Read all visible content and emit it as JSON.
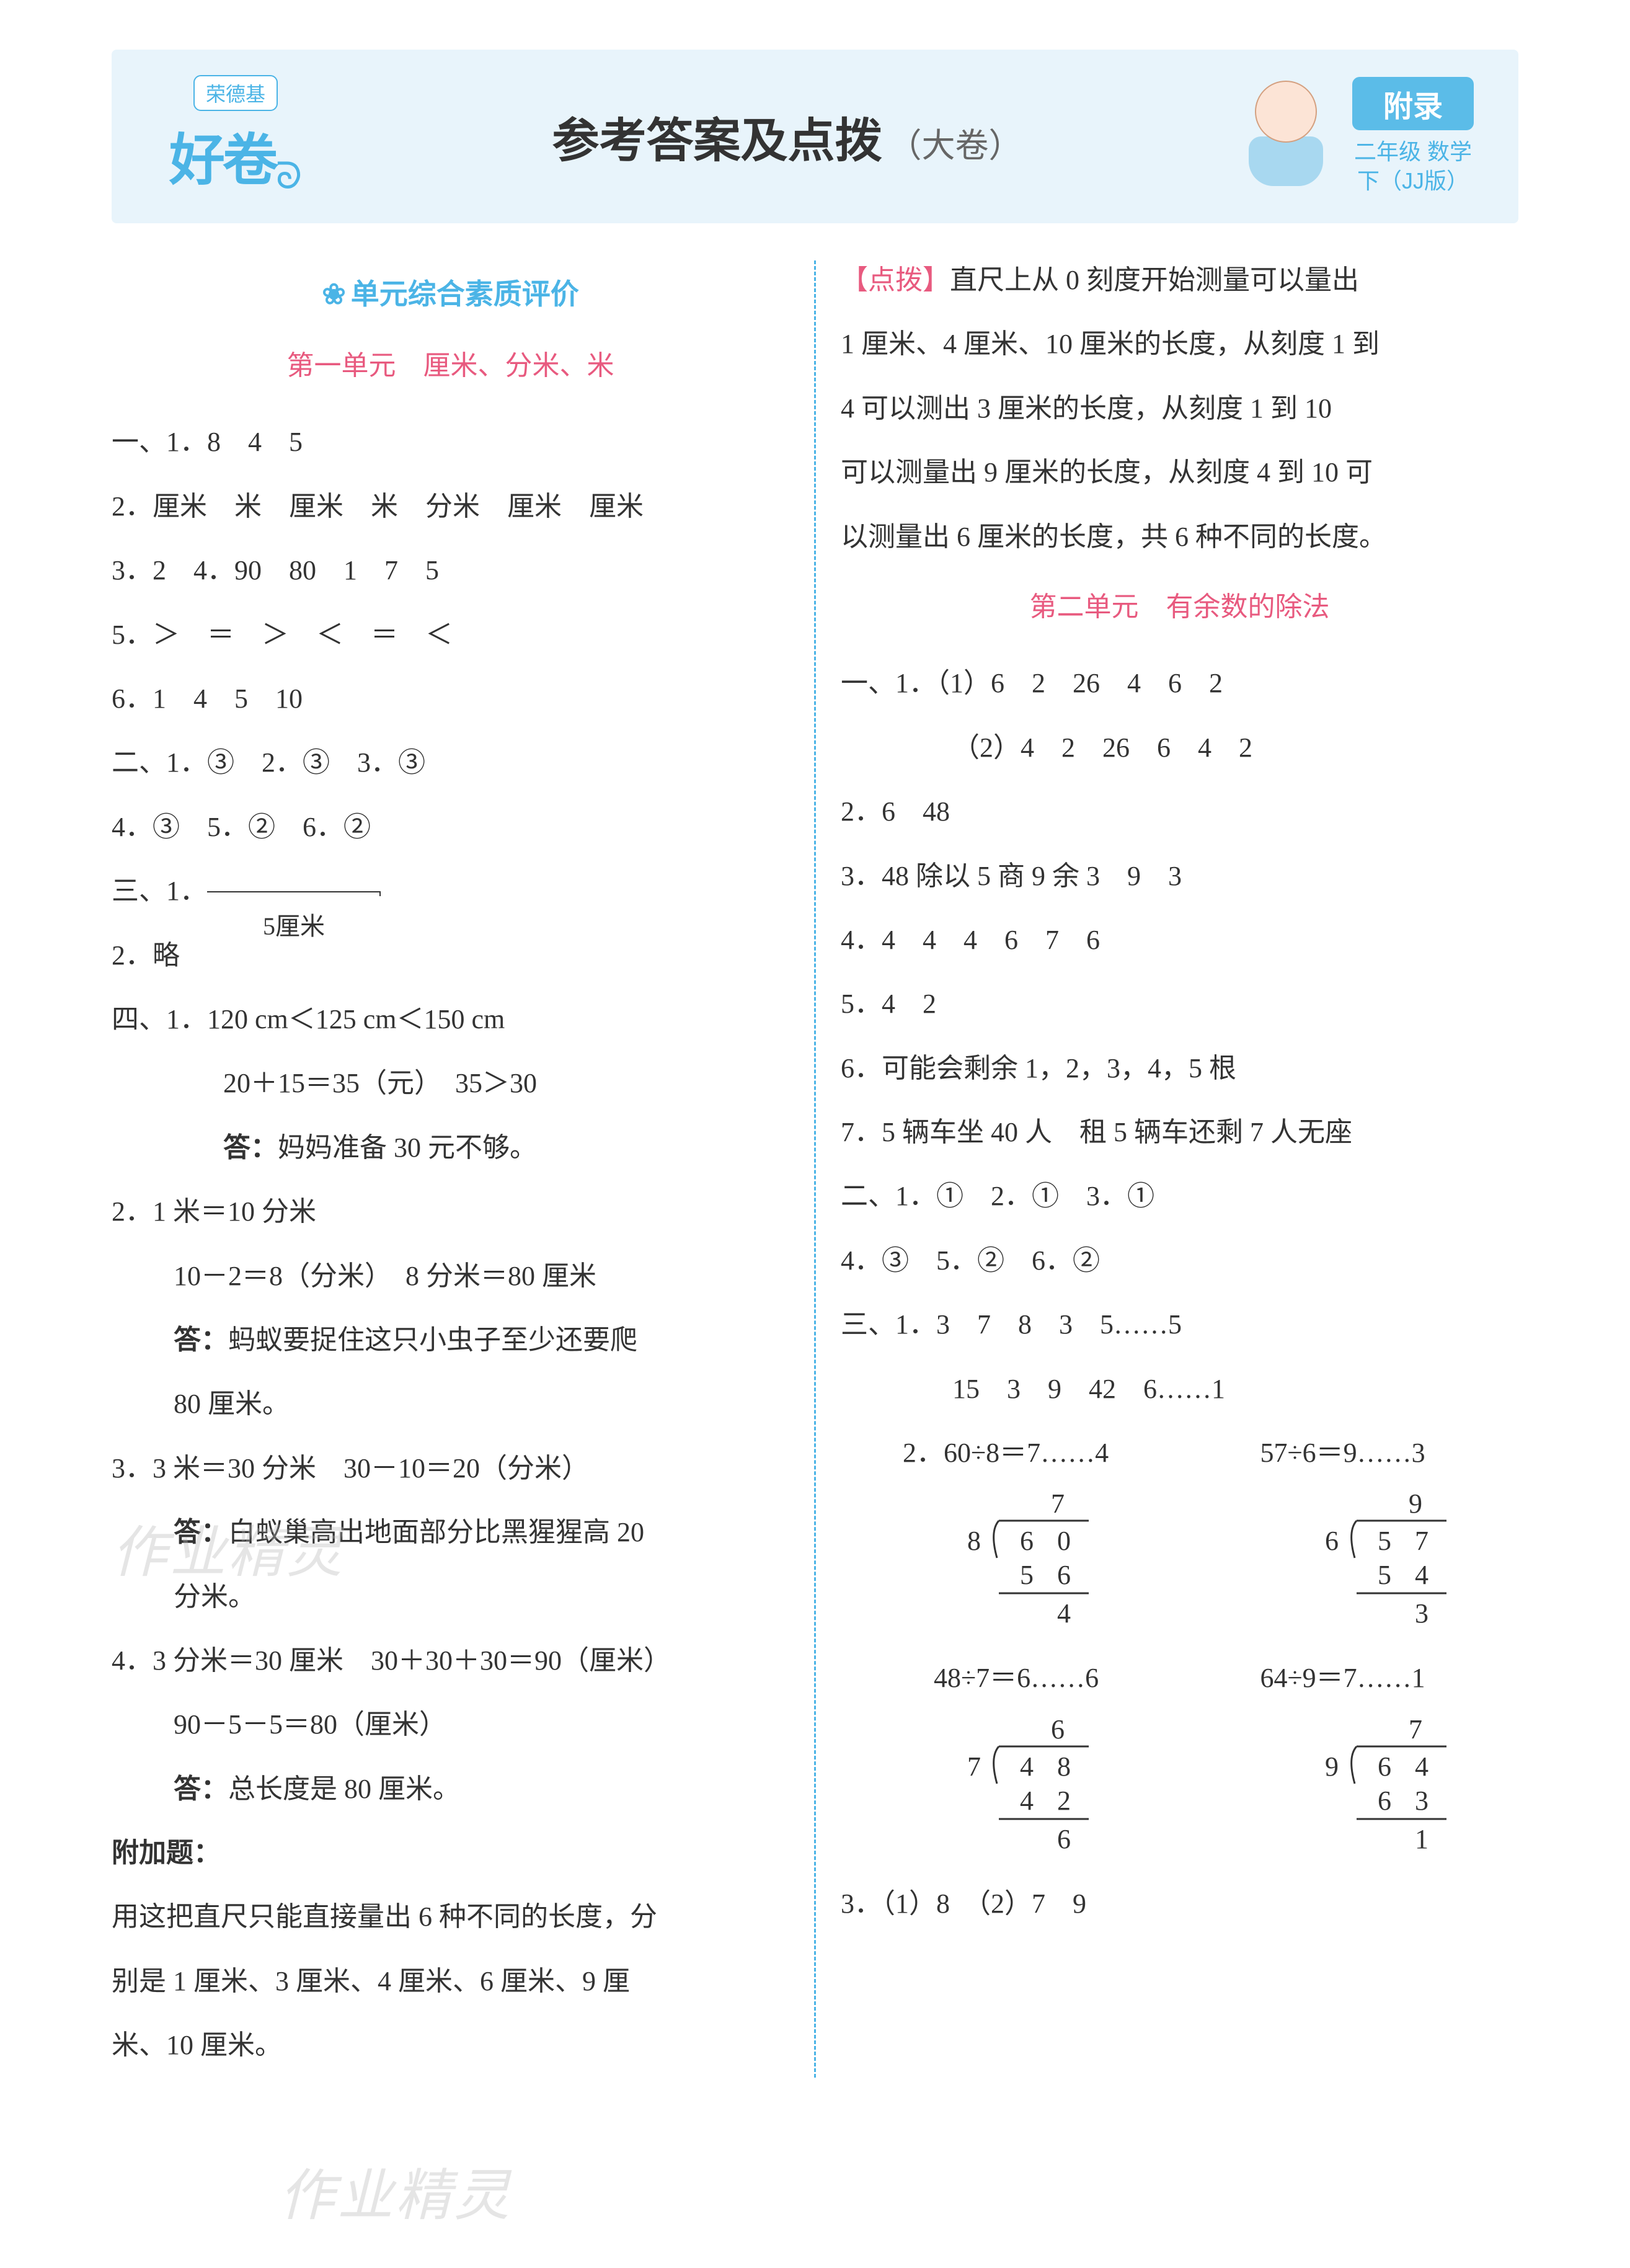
{
  "header": {
    "logo_tag": "荣德基",
    "logo_main": "好卷",
    "title_main": "参考答案及点拨",
    "title_sub": "（大卷）",
    "badge_top": "附录",
    "badge_line1": "二年级 数学",
    "badge_line2": "下（JJ版）"
  },
  "colors": {
    "blue": "#4bb4e6",
    "pink": "#e85a7f",
    "header_bg": "#e8f4fb",
    "text": "#333333"
  },
  "left_column": {
    "section_title": "单元综合素质评价",
    "unit_title": "第一单元　厘米、分米、米",
    "lines": [
      {
        "t": "一、1．8　4　5"
      },
      {
        "t": "2．厘米　米　厘米　米　分米　厘米　厘米"
      },
      {
        "t": "3．2　4．90　80　1　7　5"
      },
      {
        "t": "5．＞　＝　＞　＜　＝　＜"
      },
      {
        "t": "6．1　4　5　10"
      },
      {
        "t": "二、1．③　2．③　3．③"
      },
      {
        "t": "4．③　5．②　6．②"
      },
      {
        "t": "三、1．",
        "underline": "5厘米"
      },
      {
        "t": "2．略"
      },
      {
        "t": "四、1．120 cm＜125 cm＜150 cm"
      },
      {
        "t": "20＋15＝35（元）　35＞30",
        "indent": 2
      },
      {
        "t": "答：妈妈准备 30 元不够。",
        "indent": 2,
        "bold_prefix": "答："
      },
      {
        "t": "2．1 米＝10 分米"
      },
      {
        "t": "10－2＝8（分米）　8 分米＝80 厘米",
        "indent": 1
      },
      {
        "t": "答：蚂蚁要捉住这只小虫子至少还要爬",
        "indent": 1,
        "bold_prefix": "答："
      },
      {
        "t": "80 厘米。",
        "indent": 1
      },
      {
        "t": "3．3 米＝30 分米　30－10＝20（分米）"
      },
      {
        "t": "答：白蚁巢高出地面部分比黑猩猩高 20",
        "indent": 1,
        "bold_prefix": "答："
      },
      {
        "t": "分米。",
        "indent": 1
      },
      {
        "t": "4．3 分米＝30 厘米　30＋30＋30＝90（厘米）"
      },
      {
        "t": "90－5－5＝80（厘米）",
        "indent": 1
      },
      {
        "t": "答：总长度是 80 厘米。",
        "indent": 1,
        "bold_prefix": "答："
      },
      {
        "t": "附加题：",
        "bold": true
      },
      {
        "t": "用这把直尺只能直接量出 6 种不同的长度，分"
      },
      {
        "t": "别是 1 厘米、3 厘米、4 厘米、6 厘米、9 厘"
      },
      {
        "t": "米、10 厘米。"
      }
    ]
  },
  "right_column": {
    "hint_label": "【点拨】",
    "hint_text": "直尺上从 0 刻度开始测量可以量出\n1 厘米、4 厘米、10 厘米的长度，从刻度 1 到\n4 可以测出 3 厘米的长度，从刻度 1 到 10\n可以测量出 9 厘米的长度，从刻度 4 到 10 可\n以测量出 6 厘米的长度，共 6 种不同的长度。",
    "unit_title": "第二单元　有余数的除法",
    "lines": [
      {
        "t": "一、1．（1）6　2　26　4　6　2"
      },
      {
        "t": "（2）4　2　26　6　4　2",
        "indent": 2
      },
      {
        "t": "2．6　48"
      },
      {
        "t": "3．48 除以 5 商 9 余 3　9　3"
      },
      {
        "t": "4．4　4　4　6　7　6"
      },
      {
        "t": "5．4　2"
      },
      {
        "t": "6．可能会剩余 1，2，3，4，5 根"
      },
      {
        "t": "7．5 辆车坐 40 人　租 5 辆车还剩 7 人无座"
      },
      {
        "t": "二、1．①　2．①　3．①"
      },
      {
        "t": "4．③　5．②　6．②"
      },
      {
        "t": "三、1．3　7　8　3　5……5"
      },
      {
        "t": "15　3　9　42　6……1",
        "indent": 2
      }
    ],
    "q2_label": "2．",
    "division_problems": [
      {
        "equation": "60÷8＝7……4",
        "divisor": "8",
        "dividend": "60",
        "quotient": "7",
        "product": "56",
        "remainder": "4"
      },
      {
        "equation": "57÷6＝9……3",
        "divisor": "6",
        "dividend": "57",
        "quotient": "9",
        "product": "54",
        "remainder": "3"
      },
      {
        "equation": "48÷7＝6……6",
        "divisor": "7",
        "dividend": "48",
        "quotient": "6",
        "product": "42",
        "remainder": "6"
      },
      {
        "equation": "64÷9＝7……1",
        "divisor": "9",
        "dividend": "64",
        "quotient": "7",
        "product": "63",
        "remainder": "1"
      }
    ],
    "q3": "3．（1）8　（2）7　9"
  },
  "watermarks": {
    "text": "作业精灵"
  }
}
